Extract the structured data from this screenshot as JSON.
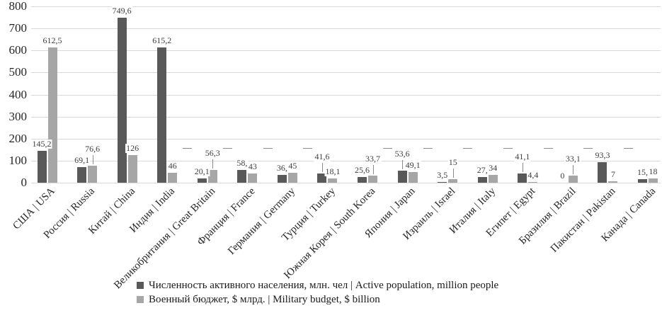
{
  "chart_data": {
    "type": "bar",
    "title": "",
    "xlabel": "",
    "ylabel": "",
    "categories": [
      "США | USA",
      "Россия | Russia",
      "Китай | China",
      "Индия | India",
      "Великобритания | Great Britain",
      "Франция | France",
      "Германия | Germany",
      "Турция | Turkey",
      "Южная Корея | South Korea",
      "Япония | Japan",
      "Израиль | Israel",
      "Италия | Italy",
      "Египет | Egypt",
      "Бразилия | Brazil",
      "Пакистан | Pakistan",
      "Канада | Canada"
    ],
    "series": [
      {
        "name": "Численность активного населения, млн. чел | Active population, million people",
        "color": "#595959",
        "values": [
          145.2,
          69.1,
          749.6,
          615.2,
          20.1,
          58,
          36,
          41.6,
          25.6,
          53.6,
          3.5,
          27,
          41.1,
          0,
          93.3,
          15
        ],
        "labels": [
          "145,2",
          "69,1",
          "749,6",
          "615,2",
          "20,1",
          "58,",
          "36,",
          "41,6",
          "25,6",
          "53,6",
          "3,5",
          "27,",
          "41,1",
          "0",
          "93,3",
          "15,"
        ]
      },
      {
        "name": "Военный бюджет, $ млрд. | Military budget, $ billion",
        "color": "#a6a6a6",
        "values": [
          612.5,
          76.6,
          126,
          46,
          56.3,
          43,
          45,
          18.1,
          33.7,
          49.1,
          15,
          34,
          4.4,
          33.1,
          7,
          18
        ],
        "labels": [
          "612,5",
          "76,6",
          "126",
          "46",
          "56,3",
          "43",
          "45",
          "18,1",
          "33,7",
          "49,1",
          "15",
          "34",
          "4,4",
          "33,1",
          "7",
          "18"
        ]
      }
    ],
    "y_axis": {
      "min": 0,
      "max": 800,
      "step": 100,
      "tick_labels": [
        "0",
        "100",
        "200",
        "300",
        "400",
        "500",
        "600",
        "700",
        "800"
      ]
    },
    "grid": true,
    "legend_position": "bottom-left",
    "layout_hints": {
      "raised_labels_series0": [
        7,
        9,
        12
      ],
      "raised_labels_series1": [
        1,
        4,
        8,
        10,
        13
      ],
      "h_leader_boundaries": [
        4,
        5,
        6,
        7,
        9,
        10,
        11,
        12,
        13,
        14,
        15
      ]
    }
  },
  "colors": {
    "background": "#ffffff",
    "grid": "#d9d9d9",
    "axis_text": "#262626",
    "value_label_text": "#404040",
    "leader_line": "#8c8c8c",
    "series_dark": "#595959",
    "series_light": "#a6a6a6"
  }
}
